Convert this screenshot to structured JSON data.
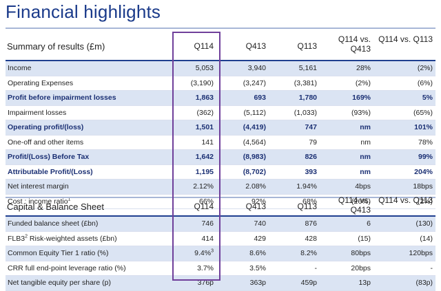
{
  "title": "Financial highlights",
  "summary": {
    "heading": "Summary of results (£m)",
    "columns": [
      "Q114",
      "Q413",
      "Q113",
      "Q114 vs. Q413",
      "Q114 vs. Q113"
    ],
    "rows": [
      {
        "label": "Income",
        "vals": [
          "5,053",
          "3,940",
          "5,161",
          "28%",
          "(2%)"
        ],
        "bold": false,
        "shade": true
      },
      {
        "label": "Operating Expenses",
        "vals": [
          "(3,190)",
          "(3,247)",
          "(3,381)",
          "(2%)",
          "(6%)"
        ],
        "bold": false,
        "shade": false
      },
      {
        "label": "Profit before impairment losses",
        "vals": [
          "1,863",
          "693",
          "1,780",
          "169%",
          "5%"
        ],
        "bold": true,
        "shade": true
      },
      {
        "label": "Impairment losses",
        "vals": [
          "(362)",
          "(5,112)",
          "(1,033)",
          "(93%)",
          "(65%)"
        ],
        "bold": false,
        "shade": false
      },
      {
        "label": "Operating profit/(loss)",
        "vals": [
          "1,501",
          "(4,419)",
          "747",
          "nm",
          "101%"
        ],
        "bold": true,
        "shade": true
      },
      {
        "label": "One-off and other items",
        "vals": [
          "141",
          "(4,564)",
          "79",
          "nm",
          "78%"
        ],
        "bold": false,
        "shade": false
      },
      {
        "label": "Profit/(Loss) Before Tax",
        "vals": [
          "1,642",
          "(8,983)",
          "826",
          "nm",
          "99%"
        ],
        "bold": true,
        "shade": true
      },
      {
        "label": "Attributable Profit/(Loss)",
        "vals": [
          "1,195",
          "(8,702)",
          "393",
          "nm",
          "204%"
        ],
        "bold": true,
        "shade": false
      },
      {
        "label": "Net interest margin",
        "vals": [
          "2.12%",
          "2.08%",
          "1.94%",
          "4bps",
          "18bps"
        ],
        "bold": false,
        "shade": true
      },
      {
        "label": "Cost : income ratio",
        "sup": "1",
        "vals": [
          "66%",
          "92%",
          "68%",
          "(26%)",
          "(2%)"
        ],
        "bold": false,
        "shade": false
      }
    ]
  },
  "capital": {
    "heading": "Capital & Balance Sheet",
    "columns": [
      "Q114",
      "Q413",
      "Q113",
      "Q114 vs. Q413",
      "Q114 vs. Q113"
    ],
    "rows": [
      {
        "label": "Funded balance sheet (£bn)",
        "vals": [
          "746",
          "740",
          "876",
          "6",
          "(130)"
        ],
        "shade": true
      },
      {
        "label": "FLB3",
        "sup": "2",
        "label_rest": " Risk-weighted assets (£bn)",
        "vals": [
          "414",
          "429",
          "428",
          "(15)",
          "(14)"
        ],
        "shade": false
      },
      {
        "label": "Common Equity Tier 1 ratio (%)",
        "vals": [
          "9.4%",
          "8.6%",
          "8.2%",
          "80bps",
          "120bps"
        ],
        "valsup": "3",
        "shade": true
      },
      {
        "label": "CRR full end-point leverage ratio (%)",
        "vals": [
          "3.7%",
          "3.5%",
          "-",
          "20bps",
          "-"
        ],
        "shade": false
      },
      {
        "label": "Net tangible equity per share (p)",
        "vals": [
          "376p",
          "363p",
          "459p",
          "13p",
          "(83p)"
        ],
        "shade": true
      }
    ]
  }
}
